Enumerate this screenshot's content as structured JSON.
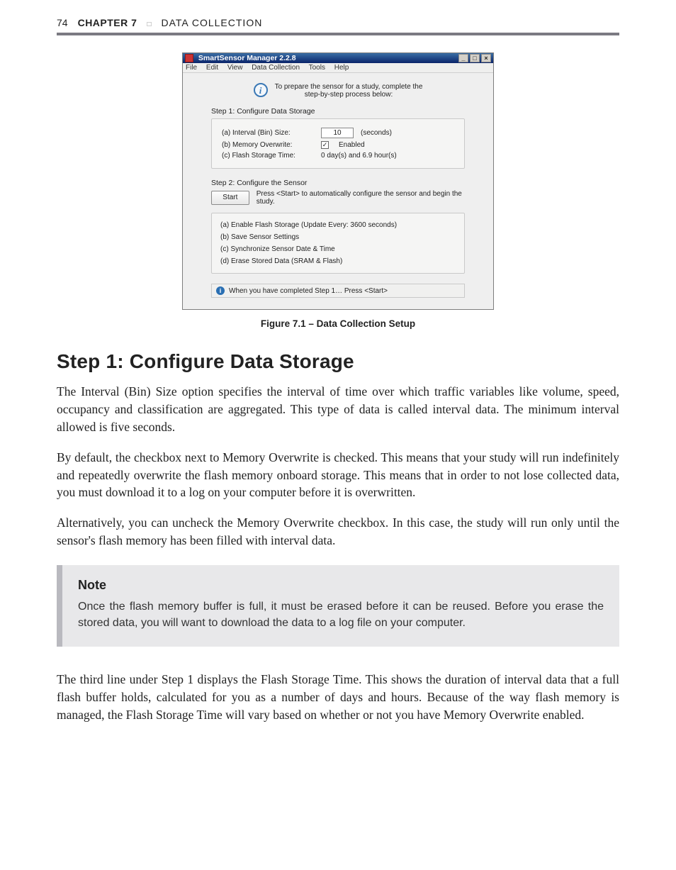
{
  "runhead": {
    "pageno": "74",
    "chapter": "CHAPTER 7",
    "separator": "□",
    "section": "DATA COLLECTION"
  },
  "figure": {
    "caption": "Figure 7.1 – Data Collection Setup",
    "win": {
      "title": "SmartSensor Manager 2.2.8",
      "btn_min": "_",
      "btn_max": "□",
      "btn_close": "×",
      "menu": {
        "file": "File",
        "edit": "Edit",
        "view": "View",
        "data": "Data Collection",
        "tools": "Tools",
        "help": "Help"
      },
      "info_line1": "To prepare the sensor for a study, complete the",
      "info_line2": "step-by-step process below:",
      "step1_title": "Step 1: Configure Data Storage",
      "s1a_label": "(a) Interval (Bin) Size:",
      "s1a_value": "10",
      "s1a_unit": "(seconds)",
      "s1b_label": "(b) Memory Overwrite:",
      "s1b_enabled": "Enabled",
      "s1c_label": "(c) Flash Storage Time:",
      "s1c_value": "0 day(s) and 6.9 hour(s)",
      "step2_title": "Step 2: Configure the Sensor",
      "start_btn": "Start",
      "start_hint": "Press <Start> to automatically configure the sensor and begin the study.",
      "s2a": "(a) Enable Flash Storage (Update Every: 3600 seconds)",
      "s2b": "(b) Save Sensor Settings",
      "s2c": "(c) Synchronize Sensor Date & Time",
      "s2d": "(d) Erase Stored Data (SRAM & Flash)",
      "status": "When you have completed Step 1… Press <Start>"
    }
  },
  "heading": "Step 1: Configure Data Storage",
  "para1": "The Interval (Bin) Size option specifies the interval of time over which traffic variables like volume, speed, occupancy and classification are aggregated. This type of data is called interval data. The minimum interval allowed is five seconds.",
  "para2": "By default, the checkbox next to Memory Overwrite is checked. This means that your study will run indefinitely and repeatedly overwrite the flash memory onboard storage. This means that in order to not lose collected data, you must download it to a log on your computer before it is overwritten.",
  "para3": "Alternatively, you can uncheck the Memory Overwrite checkbox. In this case, the study will run only until the sensor's flash memory has been filled with interval data.",
  "note": {
    "title": "Note",
    "body": "Once the flash memory buffer is full, it must be erased before it can be reused. Before you erase the stored data, you will want to download the data to a log file on your computer."
  },
  "para4": "The third line under Step 1 displays the Flash Storage Time. This shows the duration of interval data that a full flash buffer holds, calculated for you as a number of days and hours. Because of the way flash memory is managed, the Flash Storage Time will vary based on whether or not you have Memory Overwrite enabled."
}
